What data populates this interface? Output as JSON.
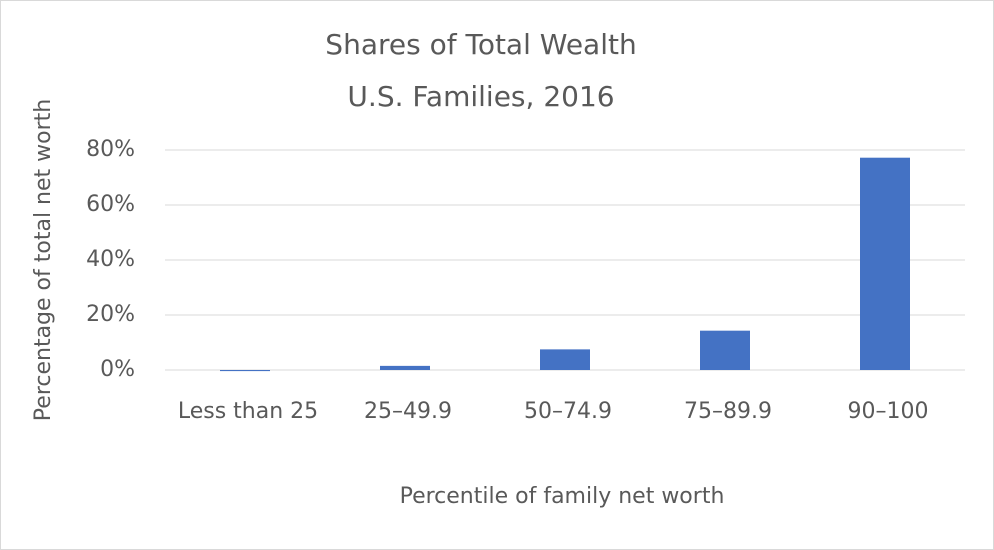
{
  "chart_data": {
    "type": "bar",
    "title": "Shares of Total Wealth",
    "subtitle": "U.S. Families, 2016",
    "x_label": "Percentile of family net worth",
    "y_label": "Percentage of total net worth",
    "categories": [
      "Less than 25",
      "25–49.9",
      "50–74.9",
      "75–89.9",
      "90–100"
    ],
    "values": [
      -0.4,
      1.5,
      7.5,
      14.3,
      77.2
    ],
    "color": "#4472c4",
    "ylim": [
      0,
      80
    ],
    "yticks": [
      {
        "value": 0,
        "label": "0%"
      },
      {
        "value": 20,
        "label": "20%"
      },
      {
        "value": 40,
        "label": "40%"
      },
      {
        "value": 60,
        "label": "60%"
      },
      {
        "value": 80,
        "label": "80%"
      }
    ],
    "grid": true
  }
}
